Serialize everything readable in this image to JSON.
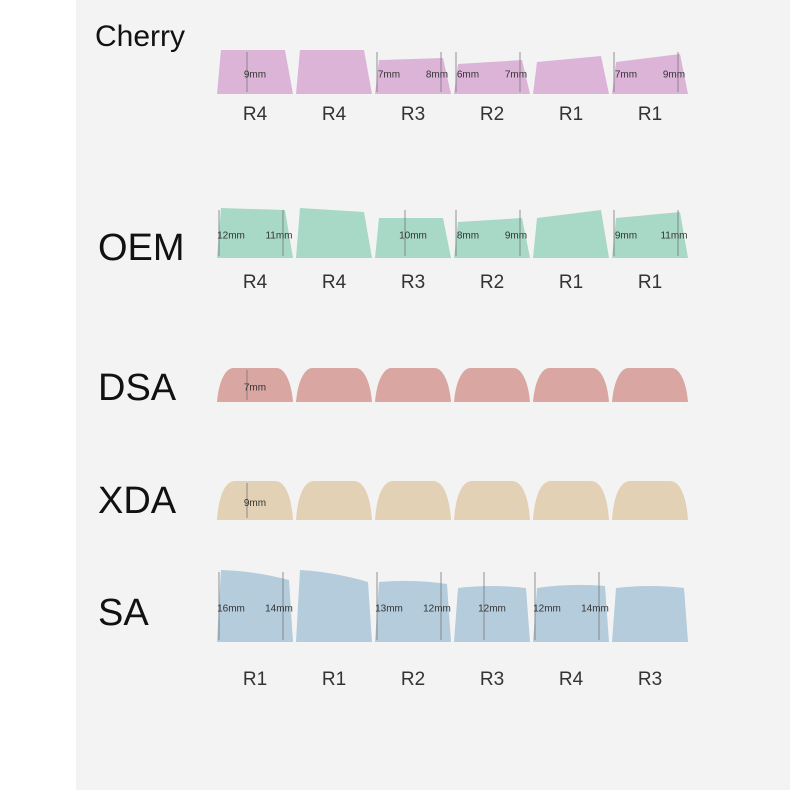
{
  "profiles": [
    {
      "name": "Cherry",
      "color": "#dcb4d8",
      "keys": [
        [
          "9mm"
        ],
        [],
        [
          "7mm",
          "8mm"
        ],
        [
          "6mm",
          "7mm"
        ],
        [],
        [
          "7mm",
          "9mm"
        ]
      ],
      "rows": [
        "R4",
        "R4",
        "R3",
        "R2",
        "R1",
        "R1"
      ]
    },
    {
      "name": "OEM",
      "color": "#a8d8c6",
      "keys": [
        [
          "12mm",
          "11mm"
        ],
        [],
        [
          "10mm"
        ],
        [
          "8mm",
          "9mm"
        ],
        [],
        [
          "9mm",
          "11mm"
        ]
      ],
      "rows": [
        "R4",
        "R4",
        "R3",
        "R2",
        "R1",
        "R1"
      ]
    },
    {
      "name": "DSA",
      "color": "#d9a6a2",
      "keys": [
        [
          "7mm"
        ],
        [],
        [],
        [],
        [],
        []
      ]
    },
    {
      "name": "XDA",
      "color": "#e2d1b4",
      "keys": [
        [
          "9mm"
        ],
        [],
        [],
        [],
        [],
        []
      ]
    },
    {
      "name": "SA",
      "color": "#b4ccdc",
      "keys": [
        [
          "16mm",
          "14mm"
        ],
        [],
        [
          "13mm",
          "12mm"
        ],
        [
          "12mm"
        ],
        [
          "12mm",
          "14mm"
        ],
        []
      ],
      "rows": [
        "R1",
        "R1",
        "R2",
        "R3",
        "R4",
        "R3"
      ]
    }
  ]
}
